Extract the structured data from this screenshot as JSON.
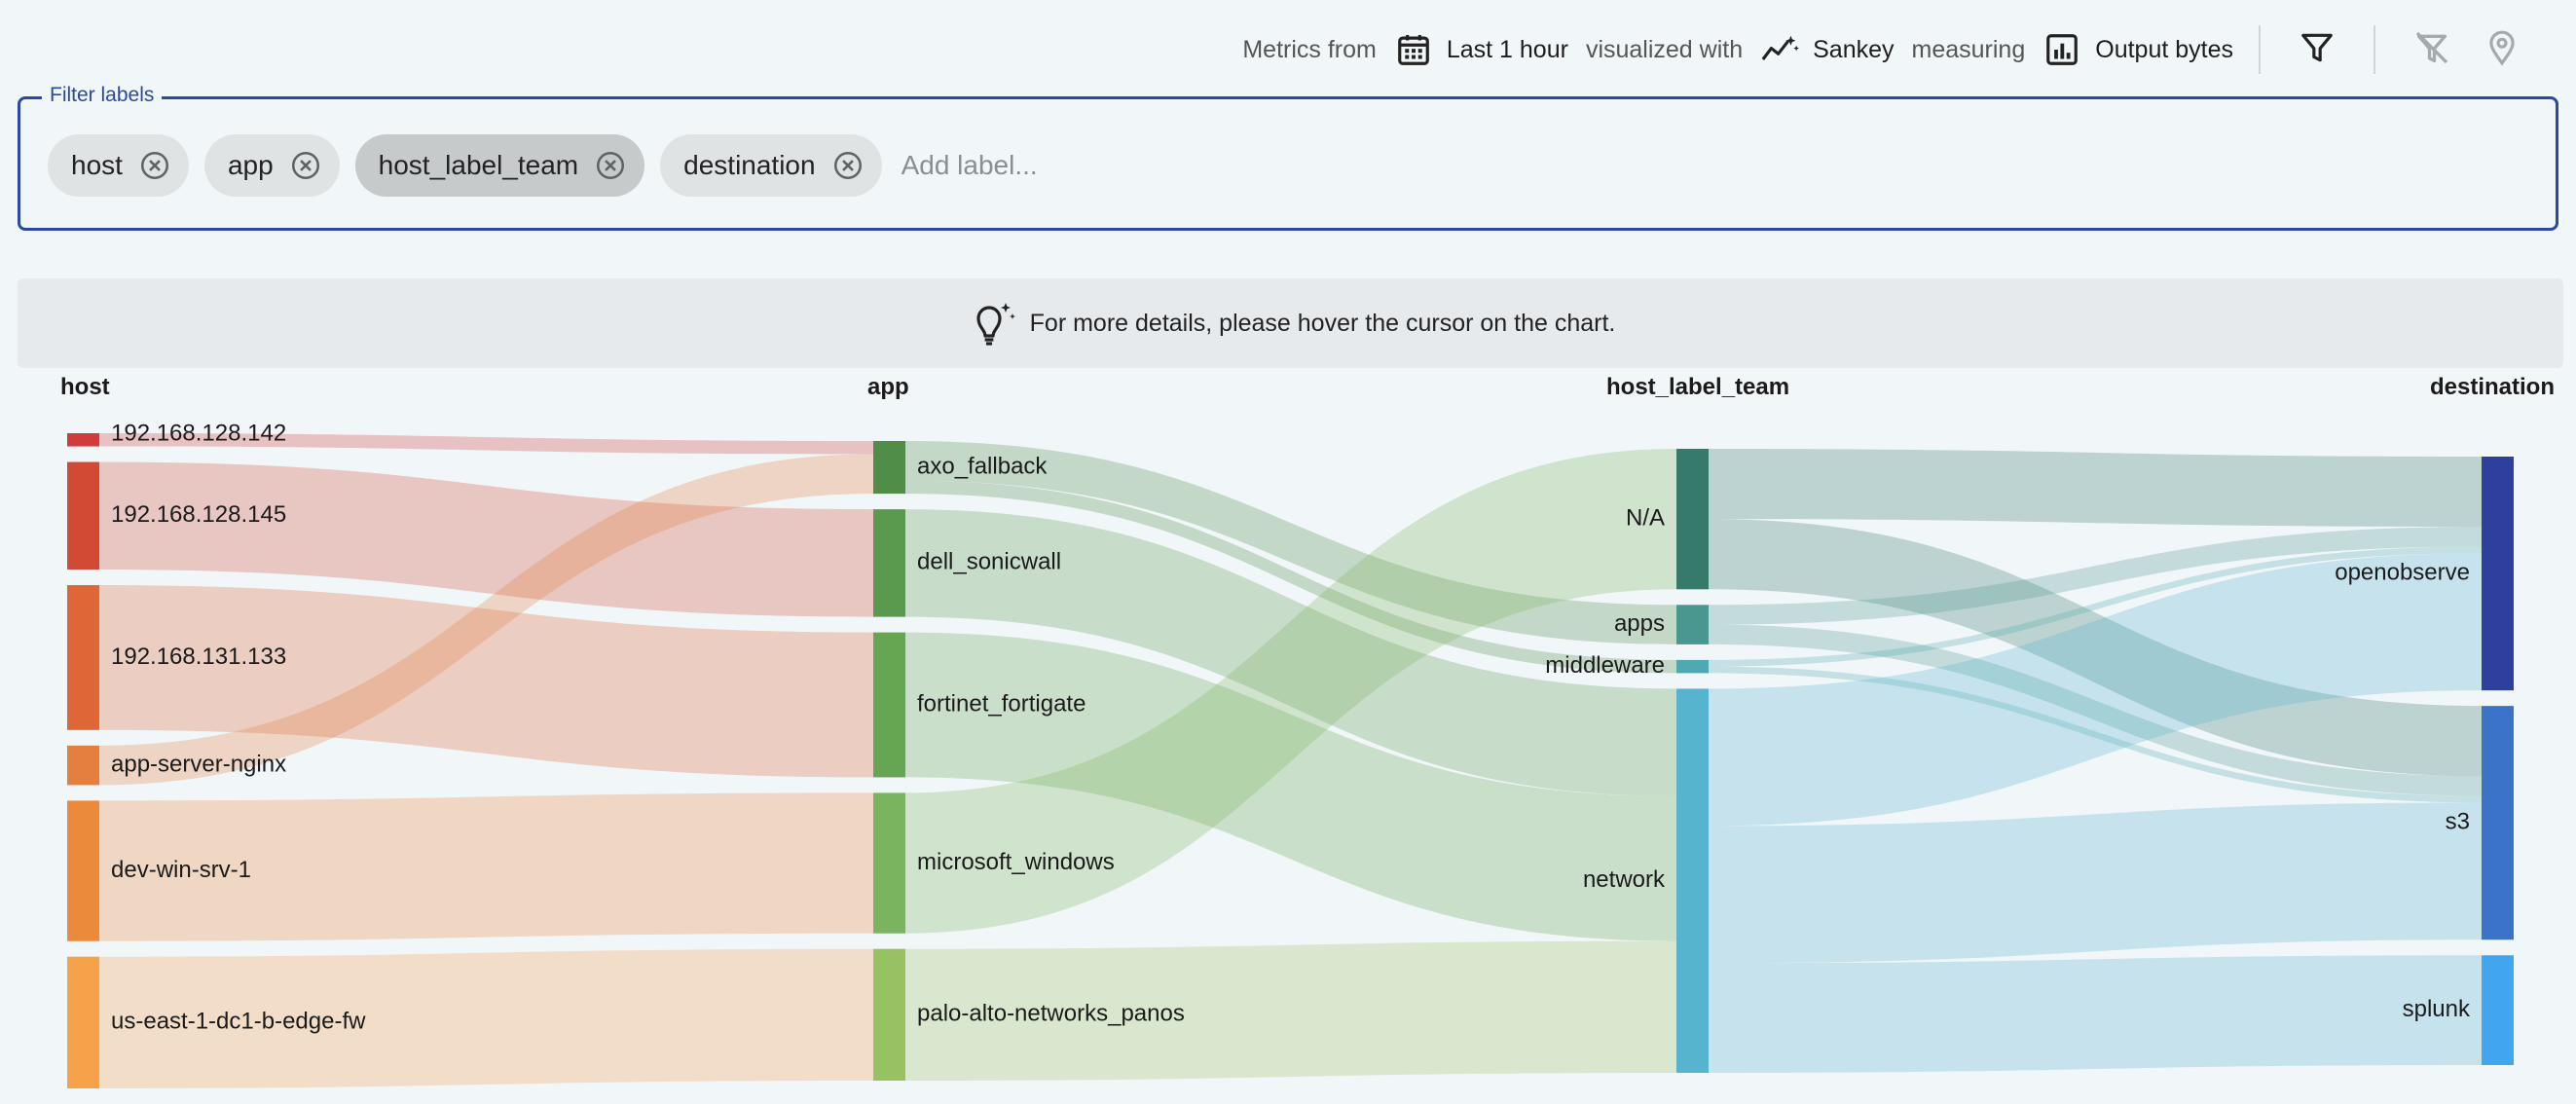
{
  "toolbar": {
    "metrics_from_text": "Metrics from",
    "time_range": "Last 1 hour",
    "visualized_with_text": "visualized with",
    "visualization": "Sankey",
    "measuring_text": "measuring",
    "metric": "Output bytes",
    "icons": [
      "calendar-icon",
      "sankey-chart-icon",
      "bar-chart-icon",
      "filter-icon",
      "clear-filter-icon",
      "location-pin-icon"
    ]
  },
  "filter": {
    "legend": "Filter labels",
    "chips": [
      {
        "label": "host"
      },
      {
        "label": "app"
      },
      {
        "label": "host_label_team"
      },
      {
        "label": "destination"
      }
    ],
    "placeholder": "Add label..."
  },
  "hint": {
    "text": "For more details, please hover the cursor on the chart."
  },
  "columns": [
    "host",
    "app",
    "host_label_team",
    "destination"
  ],
  "colors": {
    "accent": "#2b4a9e",
    "host": [
      "#d03b3b",
      "#d24a34",
      "#de6637",
      "#e47f3e",
      "#ec8a3c",
      "#f5a24a"
    ],
    "app": [
      "#4f8d48",
      "#5a9a4f",
      "#66a552",
      "#7ab45e",
      "#97c261"
    ],
    "team": [
      "#357a6b",
      "#4a978f",
      "#4fa9b1",
      "#56b4cf"
    ],
    "destination": [
      "#2e3f9e",
      "#3b73c8",
      "#42a5f0"
    ]
  },
  "chart_data": {
    "type": "sankey",
    "nodes": {
      "host": [
        "192.168.128.142",
        "192.168.128.145",
        "192.168.131.133",
        "app-server-nginx",
        "dev-win-srv-1",
        "us-east-1-dc1-b-edge-fw"
      ],
      "app": [
        "axo_fallback",
        "dell_sonicwall",
        "fortinet_fortigate",
        "microsoft_windows",
        "palo-alto-networks_panos"
      ],
      "host_label_team": [
        "N/A",
        "apps",
        "middleware",
        "network"
      ],
      "destination": [
        "openobserve",
        "s3",
        "splunk"
      ]
    },
    "links": [
      {
        "source": "192.168.128.142",
        "target": "axo_fallback",
        "value": 12
      },
      {
        "source": "192.168.128.145",
        "target": "dell_sonicwall",
        "value": 98
      },
      {
        "source": "192.168.131.133",
        "target": "fortinet_fortigate",
        "value": 132
      },
      {
        "source": "app-server-nginx",
        "target": "axo_fallback",
        "value": 36
      },
      {
        "source": "dev-win-srv-1",
        "target": "microsoft_windows",
        "value": 128
      },
      {
        "source": "us-east-1-dc1-b-edge-fw",
        "target": "palo-alto-networks_panos",
        "value": 120
      },
      {
        "source": "axo_fallback",
        "target": "apps",
        "value": 36
      },
      {
        "source": "axo_fallback",
        "target": "middleware",
        "value": 12
      },
      {
        "source": "dell_sonicwall",
        "target": "network",
        "value": 98
      },
      {
        "source": "fortinet_fortigate",
        "target": "network",
        "value": 132
      },
      {
        "source": "microsoft_windows",
        "target": "N/A",
        "value": 128
      },
      {
        "source": "palo-alto-networks_panos",
        "target": "network",
        "value": 120
      },
      {
        "source": "N/A",
        "target": "openobserve",
        "value": 64
      },
      {
        "source": "N/A",
        "target": "s3",
        "value": 64
      },
      {
        "source": "apps",
        "target": "openobserve",
        "value": 18
      },
      {
        "source": "apps",
        "target": "s3",
        "value": 18
      },
      {
        "source": "middleware",
        "target": "openobserve",
        "value": 6
      },
      {
        "source": "middleware",
        "target": "s3",
        "value": 6
      },
      {
        "source": "network",
        "target": "openobserve",
        "value": 125
      },
      {
        "source": "network",
        "target": "s3",
        "value": 125
      },
      {
        "source": "network",
        "target": "splunk",
        "value": 100
      }
    ]
  }
}
